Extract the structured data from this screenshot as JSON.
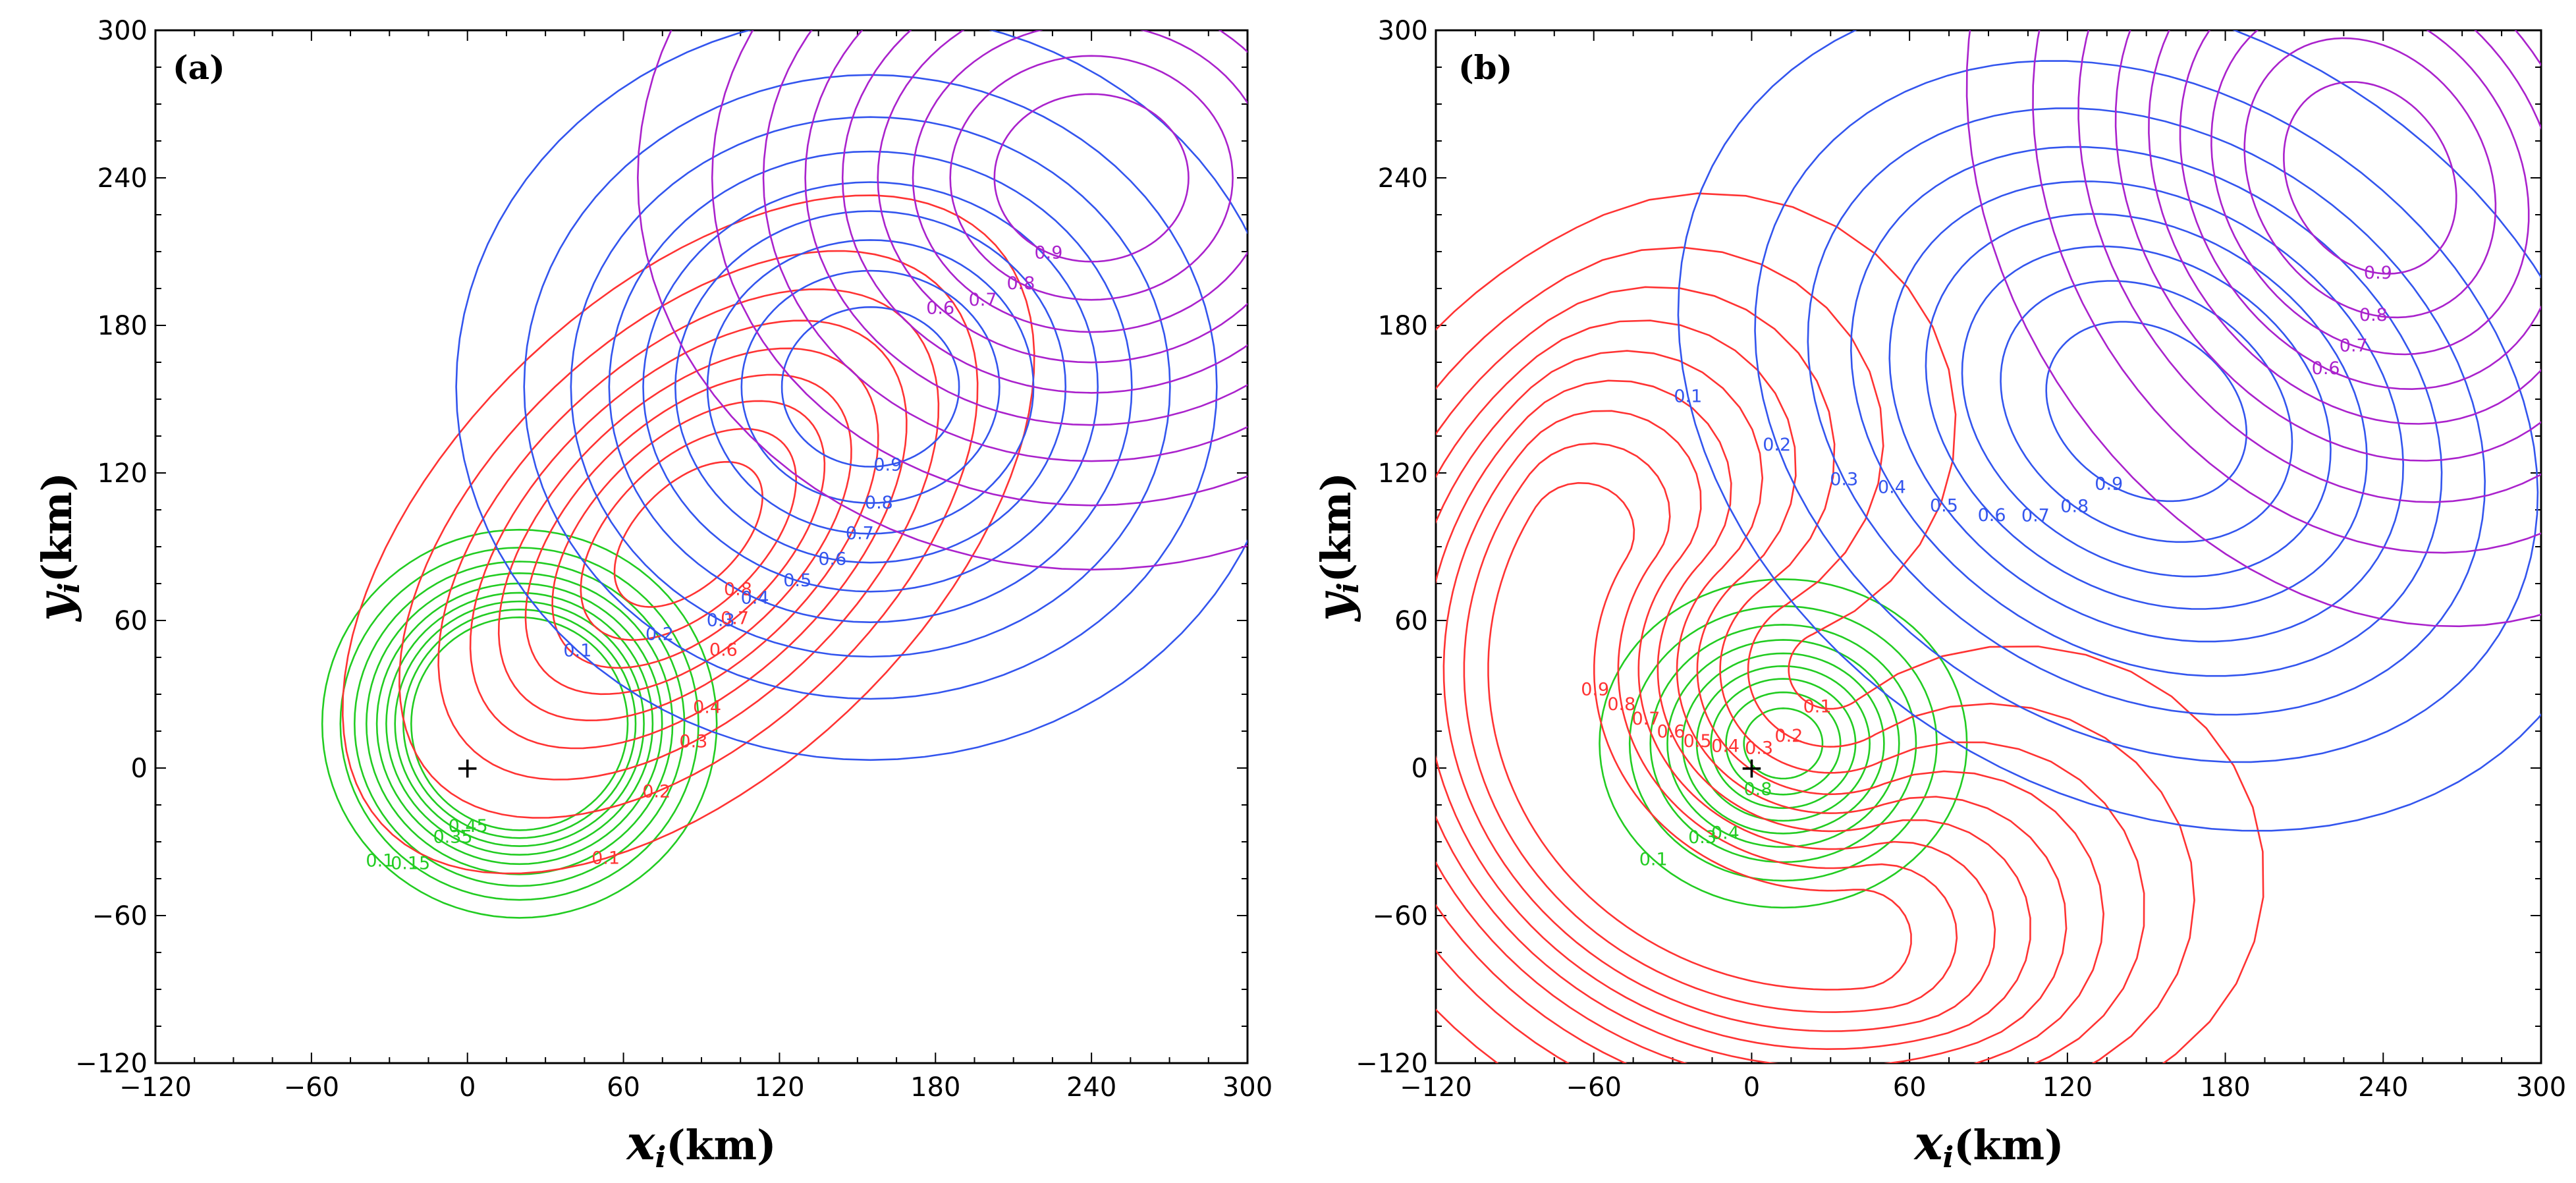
{
  "figure": {
    "panels": [
      {
        "tag": "(a)",
        "xlabel_var": "x",
        "xlabel_sub": "i",
        "xlabel_unit": "(km)",
        "ylabel_var": "y",
        "ylabel_sub": "i",
        "ylabel_unit": "(km)",
        "origin_marker": "+"
      },
      {
        "tag": "(b)",
        "xlabel_var": "x",
        "xlabel_sub": "i",
        "xlabel_unit": "(km)",
        "ylabel_var": "y",
        "ylabel_sub": "i",
        "ylabel_unit": "(km)",
        "origin_marker": "+"
      }
    ]
  },
  "chart_data": [
    {
      "type": "contour",
      "panel": "(a)",
      "xlim": [
        -120,
        300
      ],
      "ylim": [
        -120,
        300
      ],
      "xticks": [
        -120,
        -60,
        0,
        60,
        120,
        180,
        240,
        300
      ],
      "yticks": [
        -120,
        -60,
        0,
        60,
        120,
        180,
        240,
        300
      ],
      "xlabel": "x_i (km)",
      "ylabel": "y_i (km)",
      "origin": [
        0,
        0
      ],
      "series": [
        {
          "name": "green",
          "color": "#22cc22",
          "kind": "ellipse",
          "center": [
            20,
            18
          ],
          "semi_axes": [
            50,
            52
          ],
          "rotation_deg": 0,
          "levels": [
            0.1,
            0.15,
            0.2,
            0.25,
            0.3,
            0.35,
            0.4,
            0.45,
            0.5
          ],
          "labels": [
            "0.1",
            "0.15",
            "0.35",
            "0.45"
          ]
        },
        {
          "name": "red",
          "color": "#ff3333",
          "kind": "ellipse",
          "center": [
            85,
            95
          ],
          "semi_axes": [
            110,
            62
          ],
          "rotation_deg": 47,
          "levels": [
            0.1,
            0.2,
            0.3,
            0.4,
            0.5,
            0.6,
            0.7,
            0.8,
            0.9
          ],
          "labels": [
            "0.1",
            "0.2",
            "0.3",
            "0.4",
            "0.6",
            "0.7",
            "0.8"
          ]
        },
        {
          "name": "blue",
          "color": "#3355ee",
          "kind": "ellipse",
          "center": [
            155,
            155
          ],
          "semi_axes": [
            105,
            100
          ],
          "rotation_deg": 0,
          "levels": [
            0.1,
            0.2,
            0.3,
            0.4,
            0.5,
            0.6,
            0.7,
            0.8,
            0.9
          ],
          "labels": [
            "0.1",
            "0.2",
            "0.3",
            "0.4",
            "0.5",
            "0.6",
            "0.7",
            "0.8",
            "0.9"
          ]
        },
        {
          "name": "purple",
          "color": "#aa22cc",
          "kind": "ellipse",
          "center": [
            240,
            240
          ],
          "semi_axes": [
            115,
            105
          ],
          "rotation_deg": 0,
          "levels": [
            0.1,
            0.2,
            0.3,
            0.4,
            0.5,
            0.6,
            0.7,
            0.8,
            0.9
          ],
          "labels": [
            "0.6",
            "0.7",
            "0.8",
            "0.9"
          ]
        }
      ]
    },
    {
      "type": "contour",
      "panel": "(b)",
      "xlim": [
        -120,
        300
      ],
      "ylim": [
        -120,
        300
      ],
      "xticks": [
        -120,
        -60,
        0,
        60,
        120,
        180,
        240,
        300
      ],
      "yticks": [
        -120,
        -60,
        0,
        60,
        120,
        180,
        240,
        300
      ],
      "xlabel": "x_i (km)",
      "ylabel": "y_i (km)",
      "origin": [
        0,
        0
      ],
      "series": [
        {
          "name": "green",
          "color": "#22cc22",
          "kind": "ellipse",
          "center": [
            12,
            10
          ],
          "semi_axes": [
            46,
            44
          ],
          "rotation_deg": 0,
          "levels": [
            0.1,
            0.2,
            0.3,
            0.4,
            0.5,
            0.6,
            0.7,
            0.8,
            0.9
          ],
          "labels": [
            "0.1",
            "0.3",
            "0.4",
            "0.8"
          ]
        },
        {
          "name": "red",
          "color": "#ff3333",
          "kind": "crescent",
          "center": [
            30,
            40
          ],
          "radius": 110,
          "angle_range_deg": [
            115,
            310
          ],
          "width": 62,
          "levels": [
            0.1,
            0.2,
            0.3,
            0.4,
            0.5,
            0.6,
            0.7,
            0.8,
            0.9
          ],
          "labels": [
            "0.1",
            "0.2",
            "0.3",
            "0.4",
            "0.5",
            "0.6",
            "0.7",
            "0.8",
            "0.9"
          ]
        },
        {
          "name": "blue",
          "color": "#3355ee",
          "kind": "ellipse",
          "center": [
            150,
            145
          ],
          "semi_axes": [
            128,
            100
          ],
          "rotation_deg": -40,
          "levels": [
            0.1,
            0.2,
            0.3,
            0.4,
            0.5,
            0.6,
            0.7,
            0.8,
            0.9
          ],
          "labels": [
            "0.1",
            "0.2",
            "0.3",
            "0.4",
            "0.5",
            "0.6",
            "0.7",
            "0.8",
            "0.9"
          ]
        },
        {
          "name": "purple",
          "color": "#aa22cc",
          "kind": "ellipse",
          "center": [
            235,
            240
          ],
          "semi_axes": [
            95,
            125
          ],
          "rotation_deg": 25,
          "levels": [
            0.1,
            0.2,
            0.3,
            0.4,
            0.5,
            0.6,
            0.7,
            0.8,
            0.9
          ],
          "labels": [
            "0.6",
            "0.7",
            "0.8",
            "0.9"
          ]
        }
      ]
    }
  ]
}
